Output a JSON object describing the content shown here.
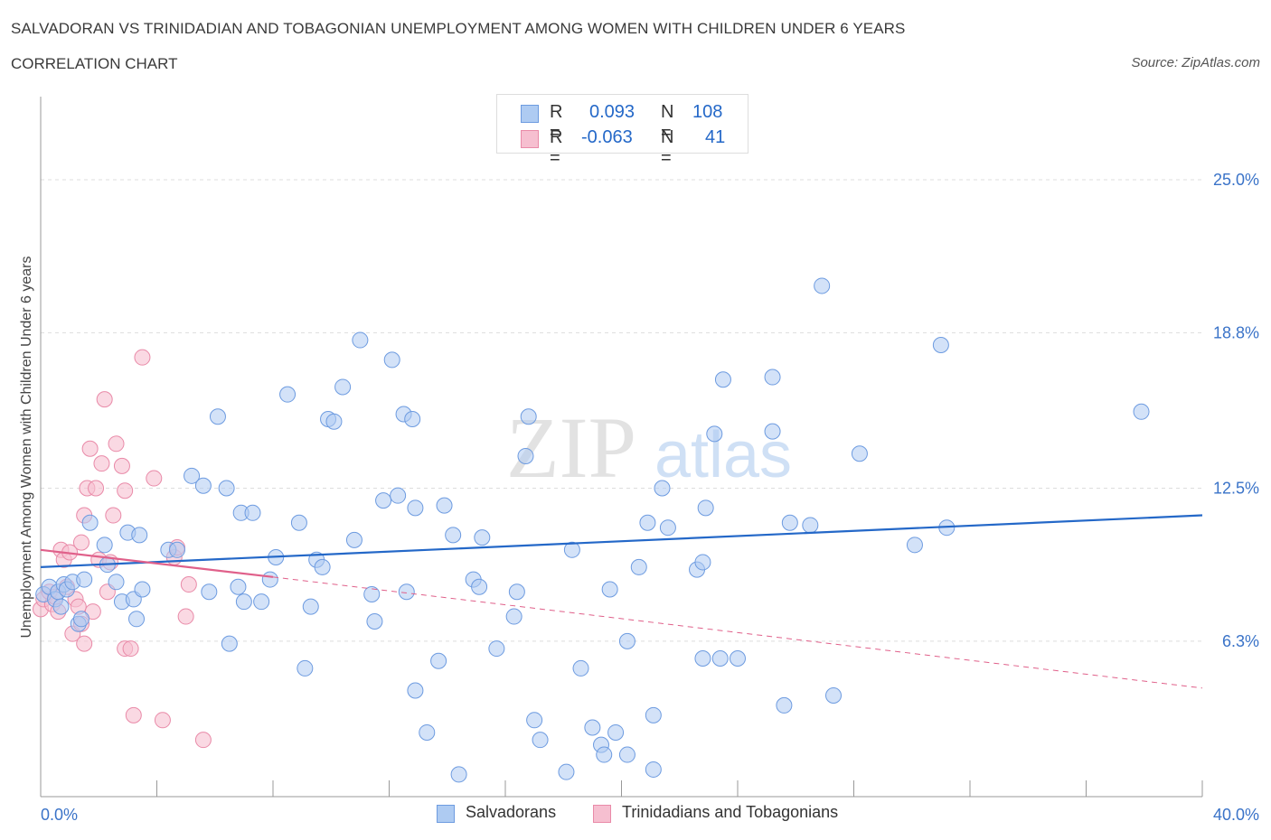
{
  "title": "SALVADORAN VS TRINIDADIAN AND TOBAGONIAN UNEMPLOYMENT AMONG WOMEN WITH CHILDREN UNDER 6 YEARS",
  "subtitle": "CORRELATION CHART",
  "source": "Source: ZipAtlas.com",
  "watermark": {
    "zip": "ZIP",
    "atlas": "atlas"
  },
  "colors": {
    "blue_fill": "#aecbf2",
    "blue_stroke": "#6d9be0",
    "blue_line": "#2468c8",
    "pink_fill": "#f6bfd0",
    "pink_stroke": "#e98aa8",
    "pink_line": "#e0608a",
    "axis_text": "#3a73c8",
    "grid": "#dddddd"
  },
  "legend": {
    "r_label": "R =",
    "n_label": "N =",
    "rows": [
      {
        "r_value": "0.093",
        "n_value": "108"
      },
      {
        "r_value": "-0.063",
        "n_value": "41"
      }
    ]
  },
  "bottom_legend": [
    "Salvadorans",
    "Trinidadians and Tobagonians"
  ],
  "chart_data": {
    "type": "scatter",
    "title": "SALVADORAN VS TRINIDADIAN AND TOBAGONIAN UNEMPLOYMENT AMONG WOMEN WITH CHILDREN UNDER 6 YEARS",
    "xlabel": "",
    "ylabel": "Unemployment Among Women with Children Under 6 years",
    "xlim": [
      0,
      40
    ],
    "ylim": [
      0,
      28
    ],
    "x_tick_labels": [
      "0.0%",
      "40.0%"
    ],
    "y_ticks": [
      6.3,
      12.5,
      18.8,
      25.0
    ],
    "y_tick_labels": [
      "6.3%",
      "12.5%",
      "18.8%",
      "25.0%"
    ],
    "series": [
      {
        "name": "Salvadorans",
        "R": 0.093,
        "N": 108,
        "trend": {
          "x": [
            0,
            40
          ],
          "y": [
            9.3,
            11.4
          ]
        },
        "points": [
          [
            0.1,
            8.2
          ],
          [
            0.3,
            8.5
          ],
          [
            0.5,
            8.0
          ],
          [
            0.6,
            8.3
          ],
          [
            0.7,
            7.7
          ],
          [
            0.8,
            8.6
          ],
          [
            0.9,
            8.4
          ],
          [
            1.1,
            8.7
          ],
          [
            1.3,
            7.0
          ],
          [
            1.4,
            7.2
          ],
          [
            1.5,
            8.8
          ],
          [
            1.7,
            11.1
          ],
          [
            2.2,
            10.2
          ],
          [
            2.3,
            9.4
          ],
          [
            2.6,
            8.7
          ],
          [
            2.8,
            7.9
          ],
          [
            3.0,
            10.7
          ],
          [
            3.2,
            8.0
          ],
          [
            3.3,
            7.2
          ],
          [
            3.4,
            10.6
          ],
          [
            3.5,
            8.4
          ],
          [
            4.4,
            10.0
          ],
          [
            4.7,
            10.0
          ],
          [
            5.2,
            13.0
          ],
          [
            5.6,
            12.6
          ],
          [
            5.8,
            8.3
          ],
          [
            6.1,
            15.4
          ],
          [
            6.4,
            12.5
          ],
          [
            6.5,
            6.2
          ],
          [
            6.8,
            8.5
          ],
          [
            6.9,
            11.5
          ],
          [
            7.0,
            7.9
          ],
          [
            7.3,
            11.5
          ],
          [
            7.6,
            7.9
          ],
          [
            7.9,
            8.8
          ],
          [
            8.1,
            9.7
          ],
          [
            8.5,
            16.3
          ],
          [
            8.9,
            11.1
          ],
          [
            9.1,
            5.2
          ],
          [
            9.3,
            7.7
          ],
          [
            9.5,
            9.6
          ],
          [
            9.7,
            9.3
          ],
          [
            9.9,
            15.3
          ],
          [
            10.1,
            15.2
          ],
          [
            10.4,
            16.6
          ],
          [
            10.8,
            10.4
          ],
          [
            11.0,
            18.5
          ],
          [
            11.5,
            7.1
          ],
          [
            11.4,
            8.2
          ],
          [
            11.8,
            12.0
          ],
          [
            12.1,
            17.7
          ],
          [
            12.5,
            15.5
          ],
          [
            12.8,
            15.3
          ],
          [
            12.9,
            4.3
          ],
          [
            12.6,
            8.3
          ],
          [
            12.3,
            12.2
          ],
          [
            12.9,
            11.7
          ],
          [
            14.2,
            10.6
          ],
          [
            13.7,
            5.5
          ],
          [
            13.3,
            2.6
          ],
          [
            13.9,
            11.8
          ],
          [
            14.4,
            0.9
          ],
          [
            14.9,
            8.8
          ],
          [
            15.1,
            8.5
          ],
          [
            15.2,
            10.5
          ],
          [
            15.7,
            6.0
          ],
          [
            16.3,
            7.3
          ],
          [
            16.4,
            8.3
          ],
          [
            16.7,
            13.8
          ],
          [
            17.0,
            3.1
          ],
          [
            16.8,
            15.4
          ],
          [
            17.2,
            2.3
          ],
          [
            18.1,
            1.0
          ],
          [
            18.3,
            10.0
          ],
          [
            18.6,
            5.2
          ],
          [
            19.3,
            2.1
          ],
          [
            19.0,
            2.8
          ],
          [
            19.4,
            1.7
          ],
          [
            19.6,
            8.4
          ],
          [
            19.8,
            2.6
          ],
          [
            20.2,
            1.7
          ],
          [
            20.2,
            6.3
          ],
          [
            20.6,
            9.3
          ],
          [
            20.9,
            11.1
          ],
          [
            21.1,
            1.1
          ],
          [
            21.1,
            3.3
          ],
          [
            21.4,
            12.5
          ],
          [
            21.6,
            10.9
          ],
          [
            22.6,
            9.2
          ],
          [
            22.8,
            5.6
          ],
          [
            23.4,
            5.6
          ],
          [
            22.8,
            9.5
          ],
          [
            23.2,
            14.7
          ],
          [
            24.0,
            5.6
          ],
          [
            23.5,
            16.9
          ],
          [
            25.2,
            14.8
          ],
          [
            25.2,
            17.0
          ],
          [
            25.6,
            3.7
          ],
          [
            25.8,
            11.1
          ],
          [
            26.5,
            11.0
          ],
          [
            27.3,
            4.1
          ],
          [
            26.9,
            20.7
          ],
          [
            28.2,
            13.9
          ],
          [
            31.0,
            18.3
          ],
          [
            31.2,
            10.9
          ],
          [
            37.9,
            15.6
          ],
          [
            22.9,
            11.7
          ],
          [
            30.1,
            10.2
          ]
        ]
      },
      {
        "name": "Trinidadians and Tobagonians",
        "R": -0.063,
        "N": 41,
        "trend": {
          "x": [
            0,
            8
          ],
          "y": [
            10.0,
            8.9
          ]
        },
        "trend_extension": {
          "x": [
            8,
            40
          ],
          "y": [
            8.9,
            4.4
          ]
        },
        "points": [
          [
            0.0,
            7.6
          ],
          [
            0.1,
            8.0
          ],
          [
            0.3,
            8.3
          ],
          [
            0.4,
            7.8
          ],
          [
            0.5,
            8.1
          ],
          [
            0.6,
            7.5
          ],
          [
            0.7,
            10.0
          ],
          [
            0.8,
            9.6
          ],
          [
            0.9,
            8.5
          ],
          [
            1.0,
            9.9
          ],
          [
            1.1,
            6.6
          ],
          [
            1.2,
            8.0
          ],
          [
            1.3,
            7.7
          ],
          [
            1.4,
            7.0
          ],
          [
            1.4,
            10.3
          ],
          [
            1.5,
            6.2
          ],
          [
            1.5,
            11.4
          ],
          [
            1.6,
            12.5
          ],
          [
            1.7,
            14.1
          ],
          [
            1.8,
            7.5
          ],
          [
            1.9,
            12.5
          ],
          [
            2.0,
            9.6
          ],
          [
            2.1,
            13.5
          ],
          [
            2.2,
            16.1
          ],
          [
            2.3,
            8.3
          ],
          [
            2.4,
            9.5
          ],
          [
            2.5,
            11.4
          ],
          [
            2.6,
            14.3
          ],
          [
            2.8,
            13.4
          ],
          [
            2.9,
            12.4
          ],
          [
            2.9,
            6.0
          ],
          [
            3.1,
            6.0
          ],
          [
            3.2,
            3.3
          ],
          [
            3.5,
            17.8
          ],
          [
            3.9,
            12.9
          ],
          [
            4.2,
            3.1
          ],
          [
            4.6,
            9.7
          ],
          [
            4.7,
            10.1
          ],
          [
            5.0,
            7.3
          ],
          [
            5.1,
            8.6
          ],
          [
            5.6,
            2.3
          ]
        ]
      }
    ]
  }
}
